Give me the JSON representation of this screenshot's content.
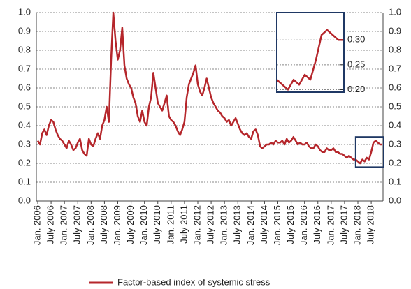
{
  "chart_data": {
    "type": "line",
    "x": [
      "2006-01",
      "2006-02",
      "2006-03",
      "2006-04",
      "2006-05",
      "2006-06",
      "2006-07",
      "2006-08",
      "2006-09",
      "2006-10",
      "2006-11",
      "2006-12",
      "2007-01",
      "2007-02",
      "2007-03",
      "2007-04",
      "2007-05",
      "2007-06",
      "2007-07",
      "2007-08",
      "2007-09",
      "2007-10",
      "2007-11",
      "2007-12",
      "2008-01",
      "2008-02",
      "2008-03",
      "2008-04",
      "2008-05",
      "2008-06",
      "2008-07",
      "2008-08",
      "2008-09",
      "2008-10",
      "2008-11",
      "2008-12",
      "2009-01",
      "2009-02",
      "2009-03",
      "2009-04",
      "2009-05",
      "2009-06",
      "2009-07",
      "2009-08",
      "2009-09",
      "2009-10",
      "2009-11",
      "2009-12",
      "2010-01",
      "2010-02",
      "2010-03",
      "2010-04",
      "2010-05",
      "2010-06",
      "2010-07",
      "2010-08",
      "2010-09",
      "2010-10",
      "2010-11",
      "2010-12",
      "2011-01",
      "2011-02",
      "2011-03",
      "2011-04",
      "2011-05",
      "2011-06",
      "2011-07",
      "2011-08",
      "2011-09",
      "2011-10",
      "2011-11",
      "2011-12",
      "2012-01",
      "2012-02",
      "2012-03",
      "2012-04",
      "2012-05",
      "2012-06",
      "2012-07",
      "2012-08",
      "2012-09",
      "2012-10",
      "2012-11",
      "2012-12",
      "2013-01",
      "2013-02",
      "2013-03",
      "2013-04",
      "2013-05",
      "2013-06",
      "2013-07",
      "2013-08",
      "2013-09",
      "2013-10",
      "2013-11",
      "2013-12",
      "2014-01",
      "2014-02",
      "2014-03",
      "2014-04",
      "2014-05",
      "2014-06",
      "2014-07",
      "2014-08",
      "2014-09",
      "2014-10",
      "2014-11",
      "2014-12",
      "2015-01",
      "2015-02",
      "2015-03",
      "2015-04",
      "2015-05",
      "2015-06",
      "2015-07",
      "2015-08",
      "2015-09",
      "2015-10",
      "2015-11",
      "2015-12",
      "2016-01",
      "2016-02",
      "2016-03",
      "2016-04",
      "2016-05",
      "2016-06",
      "2016-07",
      "2016-08",
      "2016-09",
      "2016-10",
      "2016-11",
      "2016-12",
      "2017-01",
      "2017-02",
      "2017-03",
      "2017-04",
      "2017-05",
      "2017-06",
      "2017-07",
      "2017-08",
      "2017-09",
      "2017-10",
      "2017-11",
      "2017-12",
      "2018-01",
      "2018-02",
      "2018-03",
      "2018-04",
      "2018-05",
      "2018-06",
      "2018-07",
      "2018-08",
      "2018-09",
      "2018-10",
      "2018-11",
      "2018-12"
    ],
    "series": [
      {
        "name": "Factor-based index of systemic stress",
        "color": "#b5262b",
        "values": [
          0.32,
          0.3,
          0.36,
          0.38,
          0.35,
          0.4,
          0.43,
          0.42,
          0.38,
          0.35,
          0.33,
          0.32,
          0.3,
          0.28,
          0.32,
          0.3,
          0.27,
          0.28,
          0.31,
          0.33,
          0.27,
          0.25,
          0.24,
          0.33,
          0.3,
          0.29,
          0.33,
          0.36,
          0.33,
          0.4,
          0.43,
          0.5,
          0.42,
          0.75,
          1.0,
          0.85,
          0.75,
          0.8,
          0.92,
          0.72,
          0.65,
          0.62,
          0.6,
          0.55,
          0.52,
          0.45,
          0.42,
          0.48,
          0.42,
          0.4,
          0.5,
          0.55,
          0.68,
          0.6,
          0.52,
          0.5,
          0.48,
          0.52,
          0.56,
          0.45,
          0.43,
          0.42,
          0.4,
          0.37,
          0.35,
          0.38,
          0.42,
          0.55,
          0.62,
          0.65,
          0.68,
          0.72,
          0.62,
          0.58,
          0.56,
          0.6,
          0.65,
          0.6,
          0.55,
          0.52,
          0.5,
          0.48,
          0.47,
          0.45,
          0.44,
          0.42,
          0.43,
          0.4,
          0.42,
          0.44,
          0.41,
          0.38,
          0.36,
          0.35,
          0.36,
          0.34,
          0.33,
          0.37,
          0.38,
          0.35,
          0.29,
          0.28,
          0.29,
          0.3,
          0.3,
          0.31,
          0.3,
          0.32,
          0.31,
          0.31,
          0.32,
          0.3,
          0.33,
          0.31,
          0.32,
          0.34,
          0.32,
          0.3,
          0.31,
          0.3,
          0.3,
          0.31,
          0.29,
          0.28,
          0.28,
          0.3,
          0.29,
          0.27,
          0.26,
          0.26,
          0.28,
          0.27,
          0.27,
          0.28,
          0.26,
          0.26,
          0.25,
          0.25,
          0.24,
          0.23,
          0.24,
          0.23,
          0.22,
          0.22,
          0.21,
          0.2,
          0.22,
          0.21,
          0.23,
          0.22,
          0.26,
          0.31,
          0.32,
          0.31,
          0.3,
          0.3
        ]
      }
    ],
    "xlim": [
      "2006-01",
      "2018-12"
    ],
    "xticks": [
      {
        "value": "2006-01",
        "label": "Jan. 2006"
      },
      {
        "value": "2006-07",
        "label": "July 2006"
      },
      {
        "value": "2007-01",
        "label": "Jan. 2007"
      },
      {
        "value": "2007-07",
        "label": "July 2007"
      },
      {
        "value": "2008-01",
        "label": "Jan. 2008"
      },
      {
        "value": "2008-07",
        "label": "July 2008"
      },
      {
        "value": "2009-01",
        "label": "Jan. 2009"
      },
      {
        "value": "2009-07",
        "label": "July 2009"
      },
      {
        "value": "2010-01",
        "label": "Jan. 2010"
      },
      {
        "value": "2010-07",
        "label": "July 2010"
      },
      {
        "value": "2011-01",
        "label": "Jan. 2011"
      },
      {
        "value": "2011-07",
        "label": "July 2011"
      },
      {
        "value": "2012-01",
        "label": "Jan. 2012"
      },
      {
        "value": "2012-07",
        "label": "July 2012"
      },
      {
        "value": "2013-01",
        "label": "Jan. 2013"
      },
      {
        "value": "2013-07",
        "label": "July 2013"
      },
      {
        "value": "2014-01",
        "label": "Jan. 2014"
      },
      {
        "value": "2014-07",
        "label": "July 2014"
      },
      {
        "value": "2015-01",
        "label": "Jan. 2015"
      },
      {
        "value": "2015-07",
        "label": "July 2015"
      },
      {
        "value": "2016-01",
        "label": "Jan. 2016"
      },
      {
        "value": "2016-07",
        "label": "July 2016"
      },
      {
        "value": "2017-01",
        "label": "Jan. 2017"
      },
      {
        "value": "2017-07",
        "label": "July 2017"
      },
      {
        "value": "2018-01",
        "label": "Jan. 2018"
      },
      {
        "value": "2018-07",
        "label": "July 2018"
      }
    ],
    "ylim": [
      0,
      1
    ],
    "yticks": [
      {
        "value": 0,
        "label": "0.0"
      },
      0.1,
      0.2,
      0.3,
      0.4,
      0.5,
      0.6,
      0.7,
      0.8,
      0.9,
      {
        "value": 1,
        "label": "1.0"
      }
    ],
    "grid": true,
    "legend": "bottom",
    "inset": {
      "xlim": [
        "2017-12",
        "2018-12"
      ],
      "ylim": [
        0.195,
        0.355
      ],
      "yticks": [
        {
          "value": 0.2,
          "label": "0.20"
        },
        {
          "value": 0.25,
          "label": "0.25"
        },
        {
          "value": 0.3,
          "label": "0.30"
        }
      ],
      "highlight_ylim": [
        0.18,
        0.34
      ]
    }
  }
}
